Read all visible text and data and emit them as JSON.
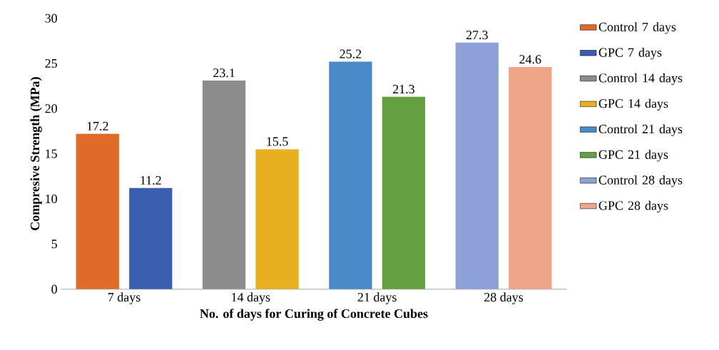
{
  "chart_data": {
    "type": "bar",
    "xlabel": "No. of days for Curing of Concrete Cubes",
    "ylabel": "Compresive Strength (MPa)",
    "categories": [
      "7 days",
      "14 days",
      "21 days",
      "28 days"
    ],
    "series": [
      {
        "name": "Control 7 days",
        "color": "#e06a28",
        "values": [
          17.2,
          null,
          null,
          null
        ]
      },
      {
        "name": "GPC 7 days",
        "color": "#3a5fb0",
        "values": [
          11.2,
          null,
          null,
          null
        ]
      },
      {
        "name": "Control 14 days",
        "color": "#8c8c8c",
        "values": [
          null,
          23.1,
          null,
          null
        ]
      },
      {
        "name": "GPC 14 days",
        "color": "#e8b020",
        "values": [
          null,
          15.5,
          null,
          null
        ]
      },
      {
        "name": "Control 21 days",
        "color": "#4a8ac8",
        "values": [
          null,
          null,
          25.2,
          null
        ]
      },
      {
        "name": "GPC 21 days",
        "color": "#64a040",
        "values": [
          null,
          null,
          21.3,
          null
        ]
      },
      {
        "name": "Control 28 days",
        "color": "#8da0d8",
        "values": [
          null,
          null,
          null,
          27.3
        ]
      },
      {
        "name": "GPC 28 days",
        "color": "#f0a488",
        "values": [
          null,
          null,
          null,
          24.6
        ]
      }
    ],
    "ylim": [
      0,
      30
    ],
    "yticks": [
      0,
      5,
      10,
      15,
      20,
      25,
      30
    ],
    "data_labels": true,
    "legend": "right"
  }
}
